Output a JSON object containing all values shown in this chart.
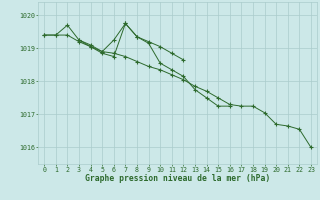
{
  "xlabel": "Graphe pression niveau de la mer (hPa)",
  "hours": [
    0,
    1,
    2,
    3,
    4,
    5,
    6,
    7,
    8,
    9,
    10,
    11,
    12,
    13,
    14,
    15,
    16,
    17,
    18,
    19,
    20,
    21,
    22,
    23
  ],
  "series1": [
    1019.4,
    1019.4,
    1019.7,
    1019.25,
    1019.1,
    1018.9,
    1019.25,
    1019.75,
    1019.35,
    1019.15,
    1018.55,
    1018.35,
    1018.15,
    1017.75,
    1017.5,
    1017.25,
    1017.25,
    null,
    null,
    null,
    null,
    null,
    null,
    null
  ],
  "series2": [
    1019.4,
    1019.4,
    1019.4,
    1019.2,
    1019.05,
    1018.9,
    1018.85,
    1018.75,
    1018.6,
    1018.45,
    1018.35,
    1018.2,
    1018.05,
    1017.85,
    1017.7,
    1017.5,
    1017.3,
    1017.25,
    1017.25,
    1017.05,
    1016.7,
    1016.65,
    1016.55,
    1016.0
  ],
  "series3": [
    null,
    null,
    null,
    1019.25,
    1019.05,
    1018.85,
    1018.75,
    1019.75,
    1019.35,
    1019.2,
    1019.05,
    1018.85,
    1018.65,
    null,
    null,
    null,
    null,
    null,
    null,
    null,
    null,
    null,
    null,
    null
  ],
  "line_color": "#2d6a2d",
  "marker": "+",
  "bg_color": "#cce8e8",
  "grid_color_major": "#aacccc",
  "grid_color_minor": "#c0dede",
  "tick_color": "#2d6a2d",
  "label_color": "#2d6a2d",
  "ylim_min": 1015.5,
  "ylim_max": 1020.4,
  "yticks": [
    1016,
    1017,
    1018,
    1019,
    1020
  ],
  "xticks": [
    0,
    1,
    2,
    3,
    4,
    5,
    6,
    7,
    8,
    9,
    10,
    11,
    12,
    13,
    14,
    15,
    16,
    17,
    18,
    19,
    20,
    21,
    22,
    23
  ]
}
